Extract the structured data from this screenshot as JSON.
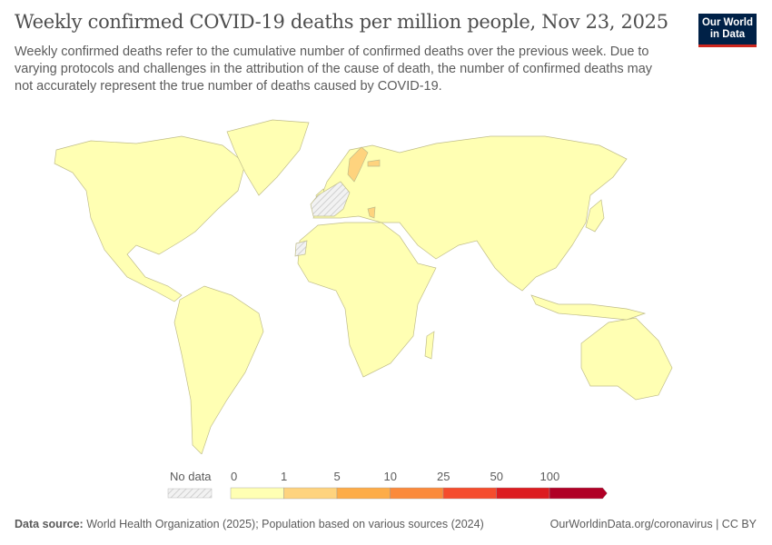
{
  "title": "Weekly confirmed COVID-19 deaths per million people, Nov 23, 2025",
  "subtitle": "Weekly confirmed deaths refer to the cumulative number of confirmed deaths over the previous week. Due to varying protocols and challenges in the attribution of the cause of death, the number of confirmed deaths may not accurately represent the true number of deaths caused by COVID-19.",
  "logo": "Our World in Data",
  "legend": {
    "no_data_label": "No data",
    "bins": [
      "0",
      "1",
      "5",
      "10",
      "25",
      "50",
      "100"
    ],
    "colors": [
      "#ffffb3",
      "#fed37e",
      "#fdac48",
      "#fb8a3b",
      "#f54c2d",
      "#dc1c20",
      "#b00026"
    ],
    "no_data_color": "#eeeeee"
  },
  "highlighted": {
    "1-5": [
      "Sweden",
      "Latvia",
      "Greece"
    ],
    "no_data": [
      "France",
      "Spain",
      "Western Sahara"
    ]
  },
  "footer": {
    "source_label": "Data source:",
    "source": "World Health Organization (2025); Population based on various sources (2024)",
    "link": "OurWorldinData.org/coronavirus | CC BY"
  }
}
